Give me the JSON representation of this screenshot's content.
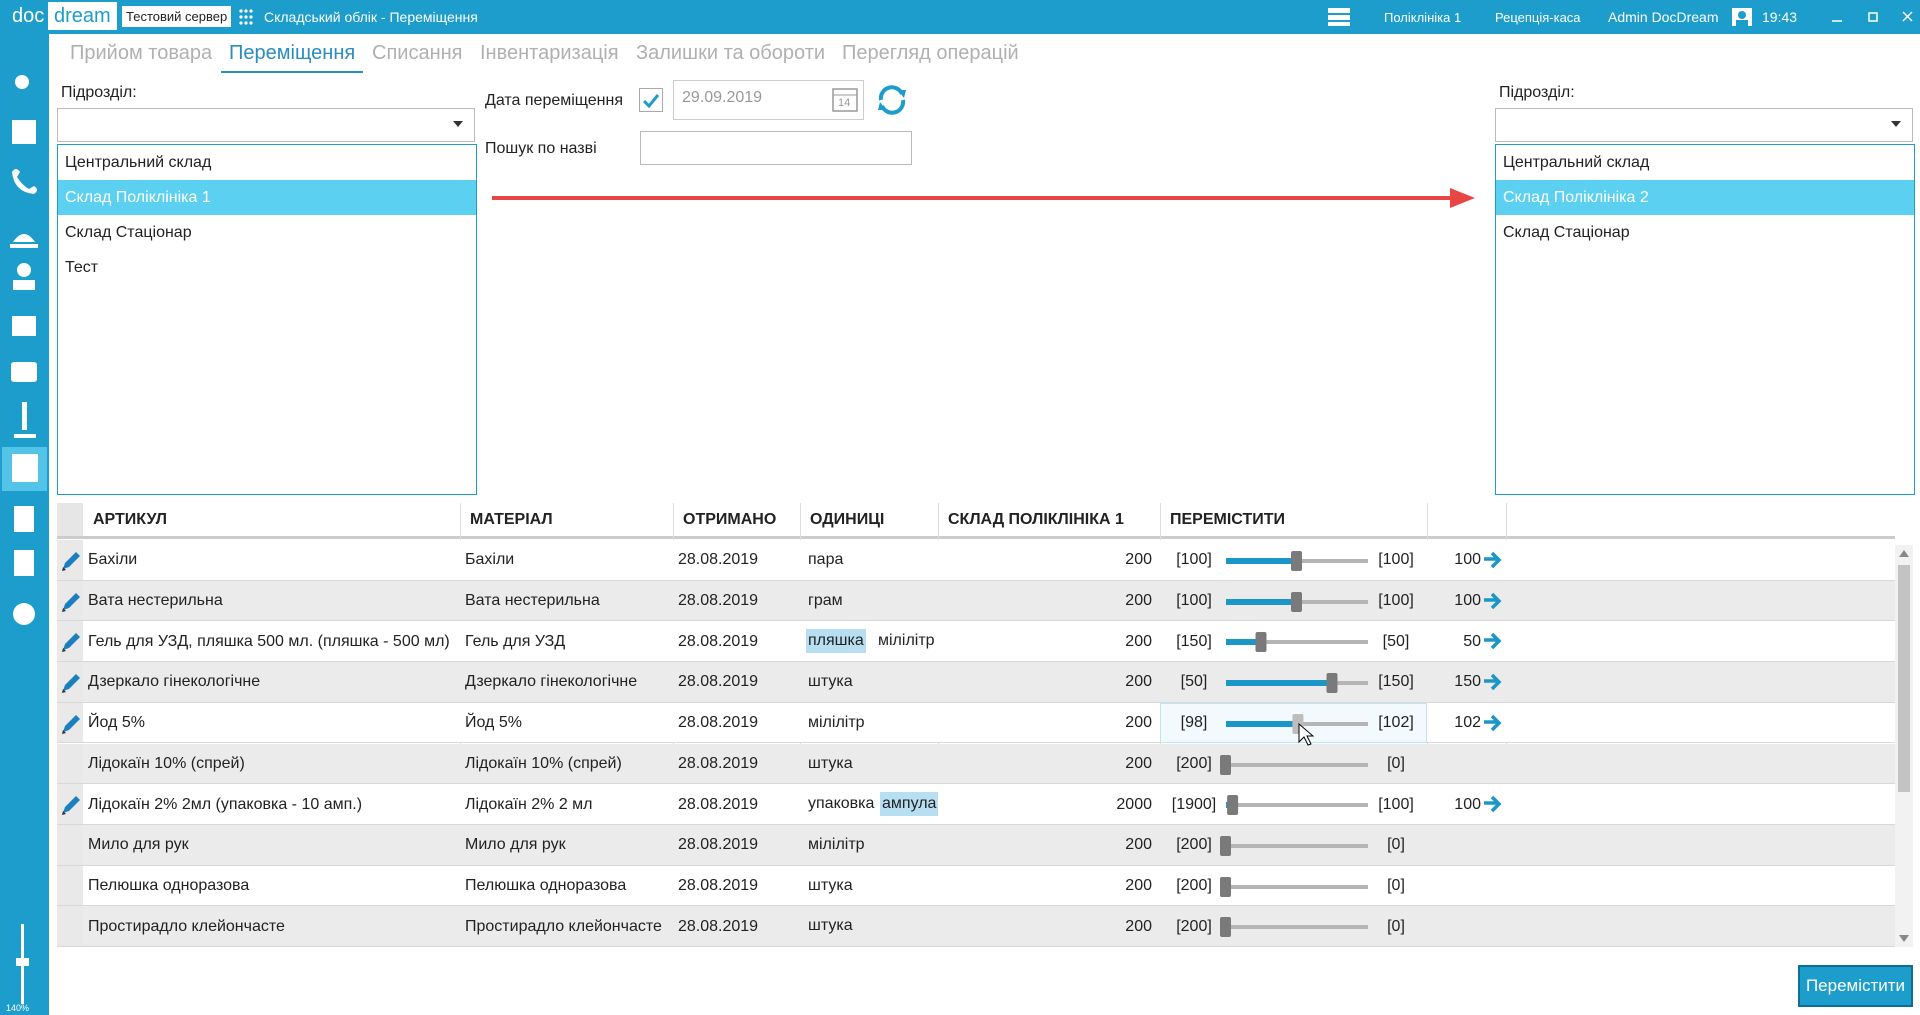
{
  "header": {
    "logo_left": "doc",
    "logo_right": "dream",
    "server": "Тестовий сервер",
    "title": "Складський облік - Переміщення",
    "clinic": "Поліклініка 1",
    "desk": "Рецепція-каса",
    "user": "Admin DocDream",
    "time": "19:43"
  },
  "tabs": {
    "items": [
      "Прийом товара",
      "Переміщення",
      "Списання",
      "Інвентаризація",
      "Залишки та обороти",
      "Перегляд операцій"
    ],
    "active": 1
  },
  "source": {
    "label": "Підрозділ:",
    "items": [
      "Центральний склад",
      "Склад Поліклініка 1",
      "Склад Стаціонар",
      "Тест"
    ],
    "selected": 1
  },
  "target": {
    "label": "Підрозділ:",
    "items": [
      "Центральний склад",
      "Склад Поліклініка 2",
      "Склад Стаціонар"
    ],
    "selected": 1
  },
  "date": {
    "label": "Дата переміщення",
    "value": "29.09.2019",
    "checked": true,
    "calendar_day": "14"
  },
  "search": {
    "label": "Пошук по назві"
  },
  "table": {
    "columns": [
      "АРТИКУЛ",
      "МАТЕРІАЛ",
      "ОТРИМАНО",
      "ОДИНИЦІ",
      "СКЛАД ПОЛІКЛІНІКА 1",
      "ПЕРЕМІСТИТИ"
    ],
    "hovered_row": 4,
    "rows": [
      {
        "article": "Бахіли",
        "material": "Бахіли",
        "received": "28.08.2019",
        "units": [
          "пара"
        ],
        "highlight_unit": null,
        "stock": 200,
        "left": "[100]",
        "right": "[100]",
        "qty": "100",
        "editable": true
      },
      {
        "article": "Вата нестерильна",
        "material": "Вата нестерильна",
        "received": "28.08.2019",
        "units": [
          "грам"
        ],
        "highlight_unit": null,
        "stock": 200,
        "left": "[100]",
        "right": "[100]",
        "qty": "100",
        "editable": true
      },
      {
        "article": "Гель для УЗД, пляшка 500 мл. (пляшка - 500 мл)",
        "material": "Гель для УЗД",
        "received": "28.08.2019",
        "units": [
          "пляшка",
          "мілілітр"
        ],
        "highlight_unit": 0,
        "stock": 200,
        "left": "[150]",
        "right": "[50]",
        "qty": "50",
        "editable": true
      },
      {
        "article": "Дзеркало гінекологічне",
        "material": "Дзеркало гінекологічне",
        "received": "28.08.2019",
        "units": [
          "штука"
        ],
        "highlight_unit": null,
        "stock": 200,
        "left": "[50]",
        "right": "[150]",
        "qty": "150",
        "editable": true
      },
      {
        "article": "Йод 5%",
        "material": "Йод 5%",
        "received": "28.08.2019",
        "units": [
          "мілілітр"
        ],
        "highlight_unit": null,
        "stock": 200,
        "left": "[98]",
        "right": "[102]",
        "qty": "102",
        "editable": true
      },
      {
        "article": "Лідокаїн 10% (спрей)",
        "material": "Лідокаїн 10% (спрей)",
        "received": "28.08.2019",
        "units": [
          "штука"
        ],
        "highlight_unit": null,
        "stock": 200,
        "left": "[200]",
        "right": "[0]",
        "qty": null,
        "editable": false
      },
      {
        "article": "Лідокаїн 2% 2мл (упаковка - 10 амп.)",
        "material": "Лідокаїн 2% 2 мл",
        "received": "28.08.2019",
        "units": [
          "упаковка",
          "ампула"
        ],
        "highlight_unit": 1,
        "stock": 2000,
        "left": "[1900]",
        "right": "[100]",
        "qty": "100",
        "editable": true
      },
      {
        "article": "Мило для рук",
        "material": "Мило для рук",
        "received": "28.08.2019",
        "units": [
          "мілілітр"
        ],
        "highlight_unit": null,
        "stock": 200,
        "left": "[200]",
        "right": "[0]",
        "qty": null,
        "editable": false
      },
      {
        "article": "Пелюшка одноразова",
        "material": "Пелюшка одноразова",
        "received": "28.08.2019",
        "units": [
          "штука"
        ],
        "highlight_unit": null,
        "stock": 200,
        "left": "[200]",
        "right": "[0]",
        "qty": null,
        "editable": false
      },
      {
        "article": "Простирадло клейончасте",
        "material": "Простирадло клейончасте",
        "received": "28.08.2019",
        "units": [
          "штука"
        ],
        "highlight_unit": null,
        "stock": 200,
        "left": "[200]",
        "right": "[0]",
        "qty": null,
        "editable": false
      }
    ]
  },
  "button": "Перемістити",
  "zoom": "140%"
}
